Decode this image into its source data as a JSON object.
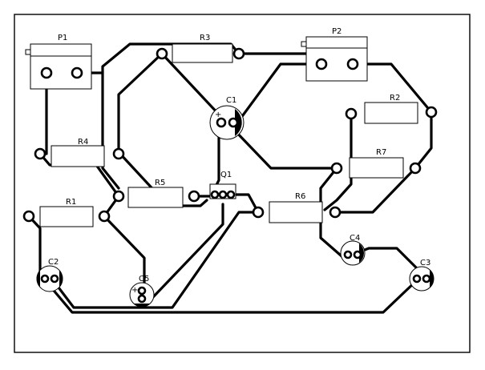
{
  "board": {
    "title": ""
  },
  "components": {
    "P1": "P1",
    "P2": "P2",
    "R1": "R1",
    "R2": "R2",
    "R3": "R3",
    "R4": "R4",
    "R5": "R5",
    "R6": "R6",
    "R7": "R7",
    "C1": "C1",
    "C2": "C2",
    "C3": "C3",
    "C4": "C4",
    "C5": "C5",
    "Q1": "Q1"
  },
  "polarity_marks": {
    "C1": "+",
    "C5": "+"
  }
}
